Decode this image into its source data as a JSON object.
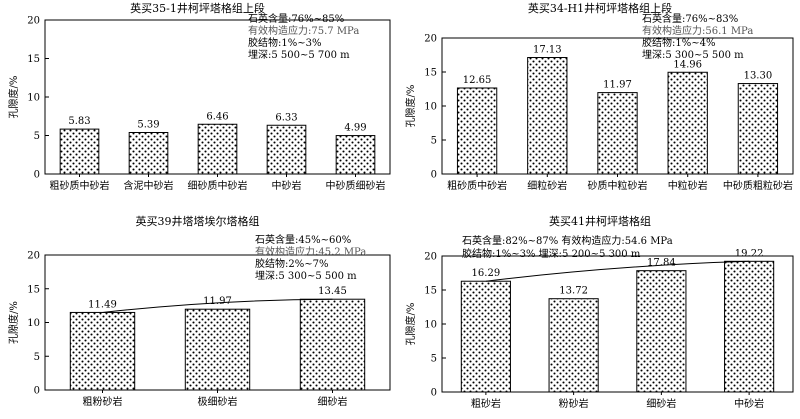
{
  "chart_data": [
    {
      "type": "bar",
      "title": "英买35-1井柯坪塔格组上段",
      "ylabel": "孔隙度/%",
      "ylim": [
        0,
        20
      ],
      "yticks": [
        0,
        5,
        10,
        15,
        20
      ],
      "categories": [
        "粗砂质中砂岩",
        "含泥中砂岩",
        "细砂质中砂岩",
        "中砂岩",
        "中砂质细砂岩"
      ],
      "values": [
        5.83,
        5.39,
        6.46,
        6.33,
        4.99
      ],
      "value_labels": [
        "5.83",
        "5.39",
        "6.46",
        "6.33",
        "4.99"
      ],
      "trendline": false,
      "annotations": [
        {
          "text": "石英含量:76%~85%",
          "color": "#000"
        },
        {
          "text": "有效构造应力:75.7 MPa",
          "color": "#555"
        },
        {
          "text": "胶结物:1%~3%",
          "color": "#000"
        },
        {
          "text": "埋深:5 500~5 700 m",
          "color": "#000"
        }
      ]
    },
    {
      "type": "bar",
      "title": "英买34-H1井柯坪塔格组上段",
      "ylabel": "孔隙度/%",
      "ylim": [
        0,
        20
      ],
      "yticks": [
        0,
        5,
        10,
        15,
        20
      ],
      "categories": [
        "粗砂质中砂岩",
        "细粒砂岩",
        "砂质中粒砂岩",
        "中粒砂岩",
        "中砂质粗粒砂岩"
      ],
      "values": [
        12.65,
        17.13,
        11.97,
        14.96,
        13.3
      ],
      "value_labels": [
        "12.65",
        "17.13",
        "11.97",
        "14.96",
        "13.30"
      ],
      "trendline": false,
      "annotations": [
        {
          "text": "石英含量:76%~83%",
          "color": "#000"
        },
        {
          "text": "有效构造应力:56.1 MPa",
          "color": "#555"
        },
        {
          "text": "胶结物:1%~4%",
          "color": "#000"
        },
        {
          "text": "埋深:5 300~5 500 m",
          "color": "#000"
        }
      ]
    },
    {
      "type": "bar",
      "title": "英买39井塔塔埃尔塔格组",
      "ylabel": "孔隙度/%",
      "ylim": [
        0,
        20
      ],
      "yticks": [
        0,
        5,
        10,
        15,
        20
      ],
      "categories": [
        "粗粉砂岩",
        "极细砂岩",
        "细砂岩"
      ],
      "values": [
        11.49,
        11.97,
        13.45
      ],
      "value_labels": [
        "11.49",
        "11.97",
        "13.45"
      ],
      "trendline": true,
      "annotations": [
        {
          "text": "石英含量:45%~60%",
          "color": "#000"
        },
        {
          "text": "有效构造应力:45.2 MPa",
          "color": "#555"
        },
        {
          "text": "胶结物:2%~7%",
          "color": "#000"
        },
        {
          "text": "埋深:5 300~5 500 m",
          "color": "#000"
        }
      ]
    },
    {
      "type": "bar",
      "title": "英买41井柯坪塔格组",
      "ylabel": "孔隙度/%",
      "ylim": [
        0,
        20
      ],
      "yticks": [
        0,
        5,
        10,
        15,
        20
      ],
      "categories": [
        "粗砂岩",
        "粉砂岩",
        "细砂岩",
        "中砂岩"
      ],
      "values": [
        16.29,
        13.72,
        17.84,
        19.22
      ],
      "value_labels": [
        "16.29",
        "13.72",
        "17.84",
        "19.22"
      ],
      "trendline": true,
      "annotations": [
        {
          "text": "石英含量:82%~87% 有效构造应力:54.6 MPa",
          "color": "#000"
        },
        {
          "text": "胶结物:1%~3%   埋深:5 200~5 300 m",
          "color": "#000"
        }
      ]
    }
  ]
}
